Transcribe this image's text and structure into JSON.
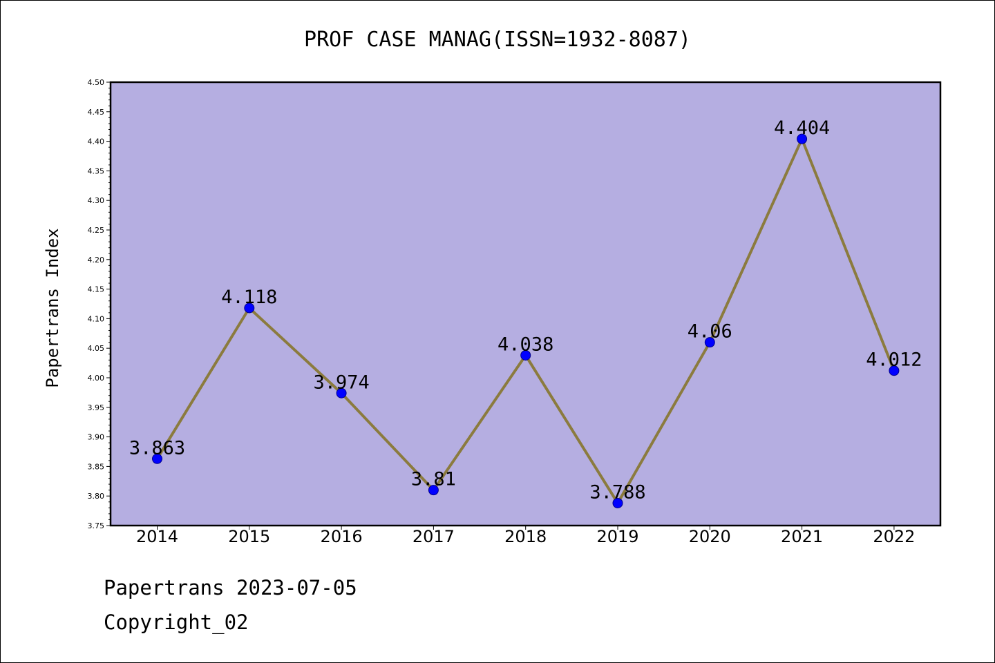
{
  "chart_data": {
    "type": "line",
    "title": "PROF CASE MANAG(ISSN=1932-8087)",
    "xlabel": "",
    "ylabel": "Papertrans Index",
    "categories": [
      "2014",
      "2015",
      "2016",
      "2017",
      "2018",
      "2019",
      "2020",
      "2021",
      "2022"
    ],
    "series": [
      {
        "values": [
          3.863,
          4.118,
          3.974,
          3.81,
          4.038,
          3.788,
          4.06,
          4.404,
          4.012
        ],
        "labels": [
          "3.863",
          "4.118",
          "3.974",
          "3.81",
          "4.038",
          "3.788",
          "4.06",
          "4.404",
          "4.012"
        ]
      }
    ],
    "ylim": [
      3.75,
      4.5
    ],
    "yticks": [
      "3.75",
      "3.80",
      "3.85",
      "3.90",
      "3.95",
      "4.00",
      "4.05",
      "4.10",
      "4.15",
      "4.20",
      "4.25",
      "4.30",
      "4.35",
      "4.40",
      "4.45",
      "4.50"
    ],
    "grid": false,
    "legend": "none",
    "colors": {
      "plot_background": "#b5aee1",
      "line": "#8b7b3e",
      "marker": "#0000ff"
    }
  },
  "footer": {
    "date_line": "Papertrans 2023-07-05",
    "copyright_line": "Copyright_02"
  }
}
